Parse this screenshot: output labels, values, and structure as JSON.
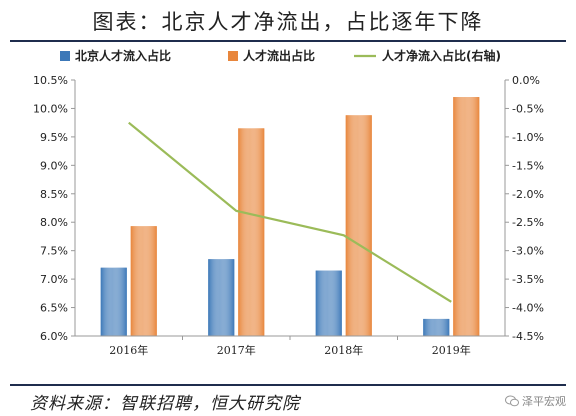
{
  "title": "图表：北京人才净流出，占比逐年下降",
  "source": "资料来源：智联招聘，恒大研究院",
  "watermark": {
    "text": "泽平宏观",
    "icon": "wechat-icon"
  },
  "chart_data": {
    "type": "bar",
    "categories": [
      "2016年",
      "2017年",
      "2018年",
      "2019年"
    ],
    "series": [
      {
        "name": "北京人才流入占比",
        "type": "bar",
        "axis": "left",
        "color": "#3c78b8",
        "values": [
          7.2,
          7.35,
          7.15,
          6.3
        ]
      },
      {
        "name": "人才流出占比",
        "type": "bar",
        "axis": "left",
        "color": "#e8863c",
        "values": [
          7.93,
          9.65,
          9.88,
          10.2
        ]
      },
      {
        "name": "人才净流入占比(右轴)",
        "type": "line",
        "axis": "right",
        "color": "#9bbb59",
        "values": [
          -0.75,
          -2.3,
          -2.73,
          -3.9
        ]
      }
    ],
    "y_left": {
      "min": 6.0,
      "max": 10.5,
      "step": 0.5,
      "ticks": [
        "6.0%",
        "6.5%",
        "7.0%",
        "7.5%",
        "8.0%",
        "8.5%",
        "9.0%",
        "9.5%",
        "10.0%",
        "10.5%"
      ]
    },
    "y_right": {
      "min": -4.5,
      "max": 0.0,
      "step": 0.5,
      "ticks": [
        "-4.5%",
        "-4.0%",
        "-3.5%",
        "-3.0%",
        "-2.5%",
        "-2.0%",
        "-1.5%",
        "-1.0%",
        "-0.5%",
        "0.0%"
      ]
    },
    "grid": false,
    "legend": "top"
  }
}
